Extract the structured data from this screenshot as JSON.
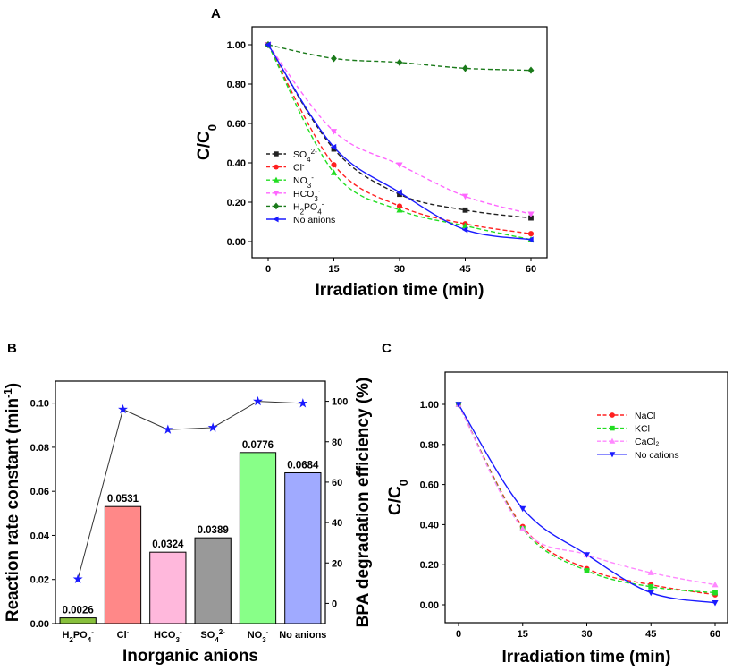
{
  "chart_data": [
    {
      "type": "line",
      "panel": "A",
      "xlabel": "Irradiation time  (min)",
      "ylabel": "C/C0",
      "ylabel_main": "C/C",
      "ylabel_sub": "0",
      "xlim": [
        0,
        60
      ],
      "ylim": [
        0,
        1
      ],
      "x_ticks": [
        0,
        15,
        30,
        45,
        60
      ],
      "y_ticks": [
        "0.00",
        "0.20",
        "0.40",
        "0.60",
        "0.80",
        "1.00"
      ],
      "x": [
        0,
        15,
        30,
        45,
        60
      ],
      "series": [
        {
          "name": "SO42-",
          "label_main": "SO",
          "label_sub": "4",
          "label_sup": "2-",
          "color": "#222222",
          "marker": "square",
          "dash": true,
          "values": [
            1.0,
            0.47,
            0.24,
            0.16,
            0.12
          ]
        },
        {
          "name": "Cl-",
          "label_main": "Cl",
          "label_sub": "",
          "label_sup": "-",
          "color": "#ff2020",
          "marker": "circle",
          "dash": true,
          "values": [
            1.0,
            0.39,
            0.18,
            0.09,
            0.04
          ]
        },
        {
          "name": "NO3-",
          "label_main": "NO",
          "label_sub": "3",
          "label_sup": "-",
          "color": "#22dd22",
          "marker": "triangle-up",
          "dash": true,
          "values": [
            1.0,
            0.35,
            0.16,
            0.08,
            0.01
          ]
        },
        {
          "name": "HCO3-",
          "label_main": "HCO",
          "label_sub": "3",
          "label_sup": "-",
          "color": "#ff66ff",
          "marker": "triangle-down",
          "dash": true,
          "values": [
            1.0,
            0.56,
            0.39,
            0.23,
            0.14
          ]
        },
        {
          "name": "H2PO4-",
          "label_main": "H",
          "label_sub": "2",
          "label_mid": "PO",
          "label_sub2": "4",
          "label_sup": "-",
          "color": "#1a7a1a",
          "marker": "diamond",
          "dash": true,
          "values": [
            1.0,
            0.93,
            0.91,
            0.88,
            0.87
          ]
        },
        {
          "name": "No anions",
          "label_main": "No anions",
          "label_sub": "",
          "label_sup": "",
          "color": "#1a1aff",
          "marker": "triangle-left",
          "dash": false,
          "values": [
            1.0,
            0.48,
            0.25,
            0.06,
            0.01
          ]
        }
      ]
    },
    {
      "type": "bar",
      "panel": "B",
      "xlabel": "Inorganic anions",
      "ylabel": "Reaction rate constant (min-1)",
      "ylabel_main": "Reaction rate constant (min",
      "ylabel_sup": "-1",
      "ylabel_end": ")",
      "y2label": "BPA degradation efficiency (%)",
      "ylim": [
        0,
        0.11
      ],
      "y2lim": [
        -10,
        110
      ],
      "y_ticks": [
        "0.00",
        "0.02",
        "0.04",
        "0.06",
        "0.08",
        "0.10"
      ],
      "y2_ticks": [
        "0",
        "20",
        "40",
        "60",
        "80",
        "100"
      ],
      "categories": [
        {
          "name": "H2PO4-",
          "main": "H",
          "sub": "2",
          "mid": "PO",
          "sub2": "4",
          "sup": "-"
        },
        {
          "name": "Cl-",
          "main": "Cl",
          "sub": "",
          "sup": "-"
        },
        {
          "name": "HCO3-",
          "main": "HCO",
          "sub": "3",
          "sup": "-"
        },
        {
          "name": "SO42-",
          "main": "SO",
          "sub": "4",
          "sup": "2-"
        },
        {
          "name": "NO3-",
          "main": "NO",
          "sub": "3",
          "sup": "-"
        },
        {
          "name": "No anions",
          "main": "No anions",
          "sub": "",
          "sup": ""
        }
      ],
      "values": [
        0.0026,
        0.0531,
        0.0324,
        0.0389,
        0.0776,
        0.0684
      ],
      "value_labels": [
        "0.0026",
        "0.0531",
        "0.0324",
        "0.0389",
        "0.0776",
        "0.0684"
      ],
      "bar_colors": [
        "#88c03c",
        "#ff8888",
        "#ffb8dc",
        "#999999",
        "#88ff88",
        "#a0aaff"
      ],
      "efficiency": [
        12,
        96,
        86,
        87,
        100,
        99
      ],
      "efficiency_color": "#1a1aff"
    },
    {
      "type": "line",
      "panel": "C",
      "xlabel": "Irradiation time  (min)",
      "ylabel": "C/C0",
      "ylabel_main": "C/C",
      "ylabel_sub": "0",
      "xlim": [
        0,
        60
      ],
      "ylim": [
        0,
        1
      ],
      "x_ticks": [
        0,
        15,
        30,
        45,
        60
      ],
      "y_ticks": [
        "0.00",
        "0.20",
        "0.40",
        "0.60",
        "0.80",
        "1.00"
      ],
      "x": [
        0,
        15,
        30,
        45,
        60
      ],
      "series": [
        {
          "name": "NaCl",
          "color": "#ff2020",
          "marker": "circle",
          "dash": true,
          "values": [
            1.0,
            0.39,
            0.18,
            0.1,
            0.05
          ]
        },
        {
          "name": "KCl",
          "color": "#22dd22",
          "marker": "square",
          "dash": true,
          "values": [
            1.0,
            0.38,
            0.17,
            0.09,
            0.06
          ]
        },
        {
          "name": "CaCl₂",
          "color": "#ff88ff",
          "marker": "triangle-up",
          "dash": true,
          "values": [
            1.0,
            0.38,
            0.25,
            0.16,
            0.1
          ]
        },
        {
          "name": "No cations",
          "color": "#1a1aff",
          "marker": "triangle-down",
          "dash": false,
          "values": [
            1.0,
            0.48,
            0.25,
            0.06,
            0.01
          ]
        }
      ]
    }
  ]
}
